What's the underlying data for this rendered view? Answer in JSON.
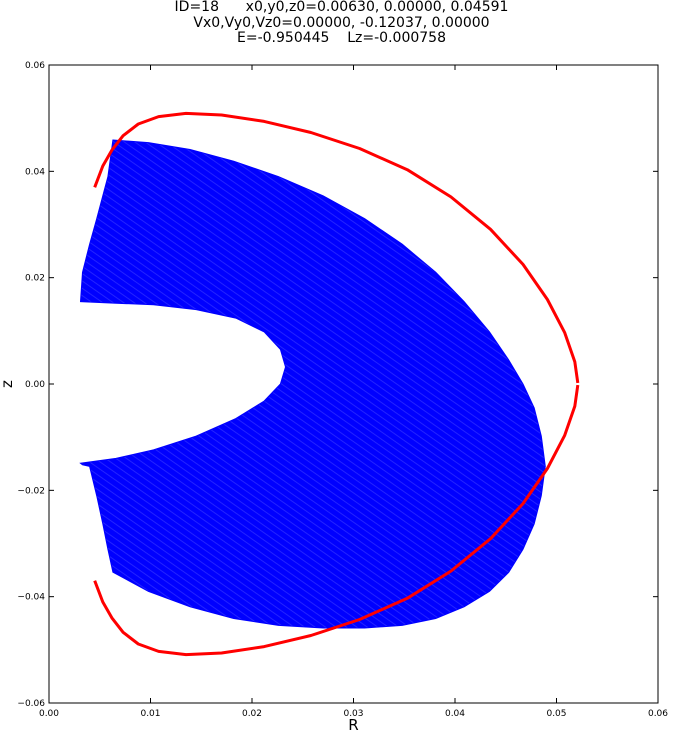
{
  "header": {
    "line1": "ID=18      x0,y0,z0=0.00630, 0.00000, 0.04591",
    "line2": "Vx0,Vy0,Vz0=0.00000, -0.12037, 0.00000",
    "line3": "E=-0.950445    Lz=-0.000758"
  },
  "chart_data": {
    "type": "line",
    "xlabel": "R",
    "ylabel": "z",
    "xlim": [
      0.0,
      0.06
    ],
    "ylim": [
      -0.06,
      0.06
    ],
    "xticks": [
      "0.00",
      "0.01",
      "0.02",
      "0.03",
      "0.04",
      "0.05",
      "0.06"
    ],
    "yticks": [
      "0.06",
      "0.04",
      "0.02",
      "0.00",
      "−0.02",
      "−0.04",
      "−0.06"
    ],
    "xtick_values": [
      0.0,
      0.01,
      0.02,
      0.03,
      0.04,
      0.05,
      0.06
    ],
    "ytick_values": [
      0.06,
      0.04,
      0.02,
      0.0,
      -0.02,
      -0.04,
      -0.06
    ],
    "grid": false,
    "series": [
      {
        "color": "#0000ff",
        "kind": "filled orbit region",
        "x": [
          0.0063,
          0.0098,
          0.0139,
          0.0182,
          0.0226,
          0.027,
          0.0311,
          0.0348,
          0.0381,
          0.0409,
          0.0434,
          0.0453,
          0.0467,
          0.0478,
          0.0485,
          0.0489,
          0.0485,
          0.0478,
          0.0467,
          0.0453,
          0.0434,
          0.0409,
          0.0381,
          0.0348,
          0.0311,
          0.027,
          0.0226,
          0.0182,
          0.0139,
          0.0098,
          0.0063,
          0.0058,
          0.0053,
          0.0047,
          0.004,
          0.0033,
          0.0031,
          0.0066,
          0.0103,
          0.0145,
          0.0184,
          0.0212,
          0.0228,
          0.0233,
          0.0228,
          0.0212,
          0.0184,
          0.0145,
          0.0103,
          0.0066,
          0.0031,
          0.0033,
          0.004,
          0.0047,
          0.0053,
          0.0058,
          0.0063
        ],
        "y": [
          0.0459,
          0.0454,
          0.0441,
          0.0419,
          0.039,
          0.0354,
          0.0311,
          0.0263,
          0.021,
          0.0155,
          0.0098,
          0.0045,
          0.0,
          -0.0045,
          -0.0098,
          -0.0155,
          -0.021,
          -0.0263,
          -0.0311,
          -0.0354,
          -0.039,
          -0.0419,
          -0.0441,
          -0.0454,
          -0.0459,
          -0.0459,
          -0.0454,
          -0.0441,
          -0.0419,
          -0.039,
          -0.0354,
          -0.0311,
          -0.0263,
          -0.021,
          -0.0155,
          -0.0152,
          -0.0149,
          -0.014,
          -0.0124,
          -0.0098,
          -0.0065,
          -0.0032,
          0.0,
          0.0032,
          0.0065,
          0.0098,
          0.0124,
          0.014,
          0.0149,
          0.0152,
          0.0155,
          0.021,
          0.0263,
          0.0311,
          0.0354,
          0.039,
          0.0459
        ]
      },
      {
        "color": "#ff0000",
        "kind": "zero-velocity curve (upper)",
        "x": [
          0.0045,
          0.0053,
          0.0062,
          0.0073,
          0.0088,
          0.0108,
          0.0135,
          0.017,
          0.0212,
          0.0258,
          0.0306,
          0.0353,
          0.0396,
          0.0435,
          0.0467,
          0.0491,
          0.0508,
          0.0518,
          0.0521
        ],
        "y": [
          0.037,
          0.041,
          0.044,
          0.0467,
          0.0489,
          0.0503,
          0.0509,
          0.0506,
          0.0494,
          0.0473,
          0.0443,
          0.0403,
          0.0352,
          0.0291,
          0.0225,
          0.0159,
          0.0097,
          0.0042,
          0.0002
        ]
      },
      {
        "color": "#ff0000",
        "kind": "zero-velocity curve (lower)",
        "x": [
          0.0045,
          0.0053,
          0.0062,
          0.0073,
          0.0088,
          0.0108,
          0.0135,
          0.017,
          0.0212,
          0.0258,
          0.0306,
          0.0353,
          0.0396,
          0.0435,
          0.0467,
          0.0491,
          0.0508,
          0.0518,
          0.0521
        ],
        "y": [
          -0.037,
          -0.041,
          -0.044,
          -0.0467,
          -0.0489,
          -0.0503,
          -0.0509,
          -0.0506,
          -0.0494,
          -0.0473,
          -0.0443,
          -0.0403,
          -0.0352,
          -0.0291,
          -0.0225,
          -0.0159,
          -0.0097,
          -0.0042,
          -0.0002
        ]
      }
    ]
  }
}
